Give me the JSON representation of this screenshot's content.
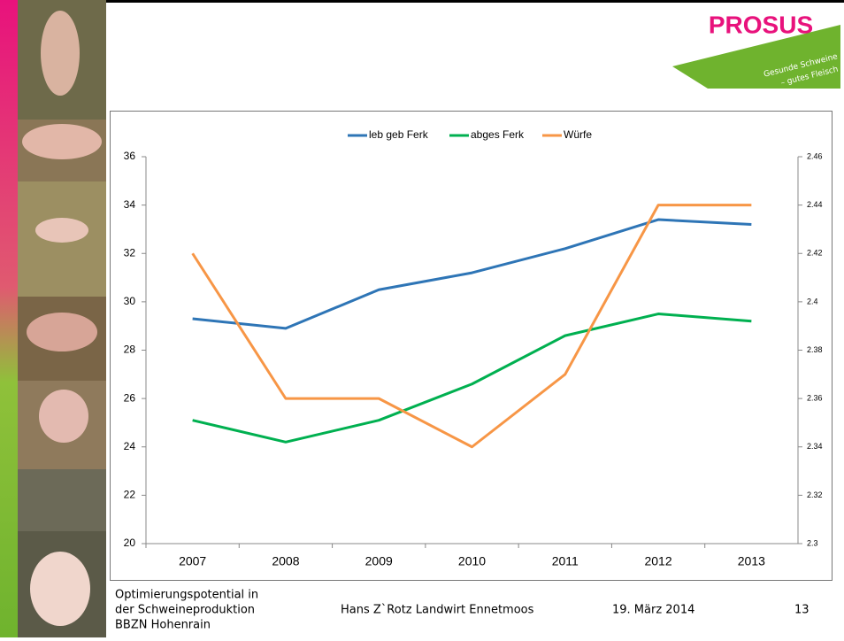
{
  "chart_data": {
    "type": "line",
    "categories": [
      "2007",
      "2008",
      "2009",
      "2010",
      "2011",
      "2012",
      "2013"
    ],
    "series": [
      {
        "name": "leb geb Ferk",
        "color": "#2e75b6",
        "values": [
          29.3,
          28.9,
          30.5,
          31.2,
          32.2,
          33.4,
          33.2
        ]
      },
      {
        "name": "abges Ferk",
        "color": "#00b050",
        "values": [
          25.1,
          24.2,
          25.1,
          26.6,
          28.6,
          29.5,
          29.2
        ]
      },
      {
        "name": "Würfe",
        "color": "#f79646",
        "axis": "y2",
        "values": [
          2.42,
          2.36,
          2.36,
          2.34,
          2.37,
          2.44,
          2.44
        ]
      }
    ],
    "ylim": [
      20,
      36
    ],
    "yticks": [
      20,
      22,
      24,
      26,
      28,
      30,
      32,
      34,
      36
    ],
    "y2lim": [
      2.3,
      2.46
    ],
    "y2ticks": [
      2.3,
      2.32,
      2.34,
      2.36,
      2.38,
      2.4,
      2.42,
      2.44,
      2.46
    ],
    "grid": false,
    "legend": "top"
  },
  "logo": {
    "name": "PROSUS",
    "tagline": [
      "Gesunde Schweine",
      "– gutes Fleisch"
    ]
  },
  "footer": {
    "course": [
      "Optimierungspotential in",
      "der Schweineproduktion",
      "BBZN Hohenrain"
    ],
    "author": "Hans Z`Rotz Landwirt Ennetmoos",
    "date": "19. März 2014",
    "page": "13"
  }
}
